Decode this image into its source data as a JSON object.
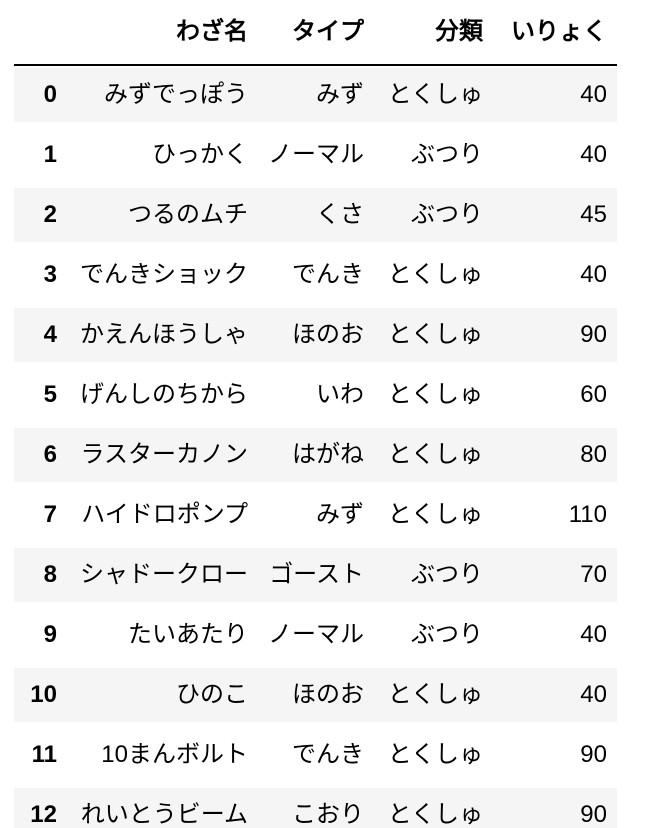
{
  "table": {
    "index_header": "",
    "columns": [
      "わざ名",
      "タイプ",
      "分類",
      "いりょく"
    ],
    "rows": [
      {
        "index": "0",
        "name": "みずでっぽう",
        "type": "みず",
        "category": "とくしゅ",
        "power": "40"
      },
      {
        "index": "1",
        "name": "ひっかく",
        "type": "ノーマル",
        "category": "ぶつり",
        "power": "40"
      },
      {
        "index": "2",
        "name": "つるのムチ",
        "type": "くさ",
        "category": "ぶつり",
        "power": "45"
      },
      {
        "index": "3",
        "name": "でんきショック",
        "type": "でんき",
        "category": "とくしゅ",
        "power": "40"
      },
      {
        "index": "4",
        "name": "かえんほうしゃ",
        "type": "ほのお",
        "category": "とくしゅ",
        "power": "90"
      },
      {
        "index": "5",
        "name": "げんしのちから",
        "type": "いわ",
        "category": "とくしゅ",
        "power": "60"
      },
      {
        "index": "6",
        "name": "ラスターカノン",
        "type": "はがね",
        "category": "とくしゅ",
        "power": "80"
      },
      {
        "index": "7",
        "name": "ハイドロポンプ",
        "type": "みず",
        "category": "とくしゅ",
        "power": "110"
      },
      {
        "index": "8",
        "name": "シャドークロー",
        "type": "ゴースト",
        "category": "ぶつり",
        "power": "70"
      },
      {
        "index": "9",
        "name": "たいあたり",
        "type": "ノーマル",
        "category": "ぶつり",
        "power": "40"
      },
      {
        "index": "10",
        "name": "ひのこ",
        "type": "ほのお",
        "category": "とくしゅ",
        "power": "40"
      },
      {
        "index": "11",
        "name": "10まんボルト",
        "type": "でんき",
        "category": "とくしゅ",
        "power": "90"
      },
      {
        "index": "12",
        "name": "れいとうビーム",
        "type": "こおり",
        "category": "とくしゅ",
        "power": "90"
      }
    ]
  },
  "colors": {
    "stripe": "#f5f5f5",
    "header_rule": "#000000",
    "text": "#000000",
    "background": "#ffffff"
  }
}
